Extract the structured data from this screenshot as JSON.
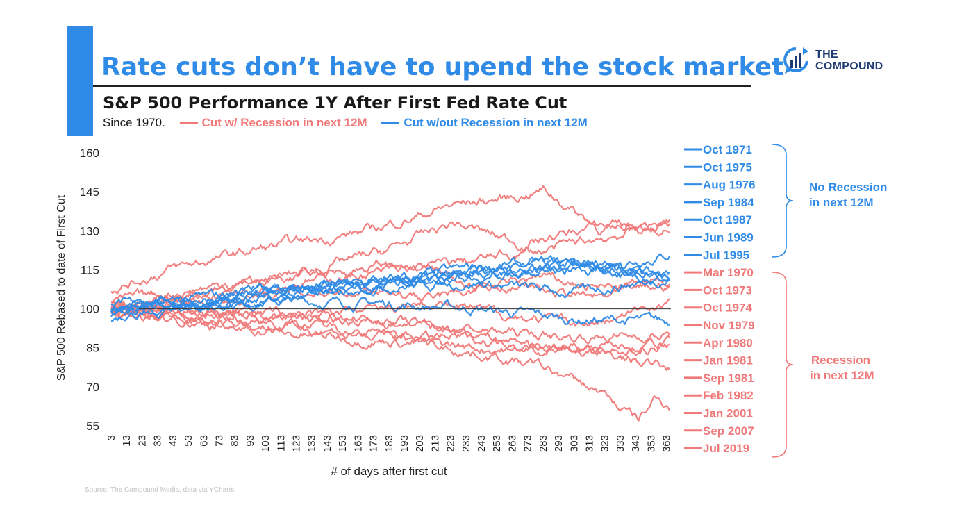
{
  "header": {
    "headline": "Rate cuts don’t have to upend the stock market",
    "subtitle": "S&P 500 Performance 1Y After First Fed Rate Cut",
    "since": "Since 1970."
  },
  "legend": {
    "recession_label": "Cut w/ Recession in next 12M",
    "no_recession_label": "Cut w/out Recession in next 12M"
  },
  "logo": {
    "line1": "THE",
    "line2": "COMPOUND"
  },
  "source": "Source: The Compound Media, data via YCharts",
  "colors": {
    "accent": "#2f8be6",
    "recession": "#f07a7a",
    "no_recession": "#2f8be6",
    "baseline": "#333333"
  },
  "groups": [
    {
      "label": "No Recession",
      "label2": "in next 12M",
      "color": "#2f8be6"
    },
    {
      "label": "Recession",
      "label2": "in next 12M",
      "color": "#f07a7a"
    }
  ],
  "chart_data": {
    "type": "line",
    "title": "S&P 500 Performance 1Y After First Fed Rate Cut",
    "xlabel": "# of days after first cut",
    "ylabel": "S&P 500 Rebased to date of First Cut",
    "xlim": [
      3,
      365
    ],
    "ylim": [
      55,
      160
    ],
    "yticks": [
      160,
      145,
      130,
      115,
      100,
      85,
      70,
      55
    ],
    "xticks": [
      3,
      13,
      23,
      33,
      43,
      53,
      63,
      73,
      83,
      93,
      103,
      113,
      123,
      133,
      143,
      153,
      163,
      173,
      183,
      193,
      203,
      213,
      223,
      233,
      243,
      253,
      263,
      273,
      283,
      293,
      303,
      313,
      323,
      333,
      343,
      353,
      363
    ],
    "baseline": 100,
    "grid": false,
    "series": [
      {
        "name": "Oct 1971",
        "group": "no_recession",
        "points": [
          [
            3,
            100
          ],
          [
            60,
            101
          ],
          [
            120,
            106
          ],
          [
            180,
            110
          ],
          [
            240,
            114
          ],
          [
            300,
            117
          ],
          [
            365,
            113
          ]
        ]
      },
      {
        "name": "Oct 1975",
        "group": "no_recession",
        "points": [
          [
            3,
            97
          ],
          [
            60,
            103
          ],
          [
            120,
            107
          ],
          [
            180,
            109
          ],
          [
            240,
            112
          ],
          [
            300,
            117
          ],
          [
            365,
            111
          ]
        ]
      },
      {
        "name": "Aug 1976",
        "group": "no_recession",
        "points": [
          [
            3,
            101
          ],
          [
            60,
            102
          ],
          [
            120,
            103
          ],
          [
            180,
            102
          ],
          [
            240,
            100
          ],
          [
            300,
            96
          ],
          [
            365,
            95
          ]
        ]
      },
      {
        "name": "Sep 1984",
        "group": "no_recession",
        "points": [
          [
            3,
            100
          ],
          [
            60,
            102
          ],
          [
            120,
            106
          ],
          [
            180,
            110
          ],
          [
            240,
            114
          ],
          [
            300,
            115
          ],
          [
            365,
            121
          ]
        ]
      },
      {
        "name": "Oct 1987",
        "group": "no_recession",
        "points": [
          [
            3,
            96
          ],
          [
            60,
            104
          ],
          [
            120,
            108
          ],
          [
            180,
            110
          ],
          [
            240,
            116
          ],
          [
            300,
            118
          ],
          [
            365,
            113
          ]
        ]
      },
      {
        "name": "Jun 1989",
        "group": "no_recession",
        "points": [
          [
            3,
            99
          ],
          [
            60,
            104
          ],
          [
            120,
            108
          ],
          [
            180,
            109
          ],
          [
            240,
            110
          ],
          [
            300,
            106
          ],
          [
            365,
            112
          ]
        ]
      },
      {
        "name": "Jul 1995",
        "group": "no_recession",
        "points": [
          [
            3,
            100
          ],
          [
            60,
            101
          ],
          [
            120,
            104
          ],
          [
            180,
            108
          ],
          [
            240,
            114
          ],
          [
            300,
            116
          ],
          [
            365,
            114
          ]
        ]
      },
      {
        "name": "Mar 1970",
        "group": "recession",
        "points": [
          [
            3,
            107
          ],
          [
            40,
            115
          ],
          [
            100,
            123
          ],
          [
            170,
            130
          ],
          [
            225,
            140
          ],
          [
            265,
            143
          ],
          [
            283,
            146
          ],
          [
            320,
            131
          ],
          [
            365,
            133
          ]
        ]
      },
      {
        "name": "Oct 1973",
        "group": "recession",
        "points": [
          [
            3,
            100
          ],
          [
            60,
            95
          ],
          [
            120,
            90
          ],
          [
            180,
            88
          ],
          [
            240,
            85
          ],
          [
            300,
            84
          ],
          [
            365,
            87
          ]
        ]
      },
      {
        "name": "Oct 1974",
        "group": "recession",
        "points": [
          [
            3,
            98
          ],
          [
            60,
            106
          ],
          [
            120,
            113
          ],
          [
            180,
            122
          ],
          [
            225,
            133
          ],
          [
            270,
            125
          ],
          [
            320,
            132
          ],
          [
            365,
            131
          ]
        ]
      },
      {
        "name": "Nov 1979",
        "group": "recession",
        "points": [
          [
            3,
            102
          ],
          [
            60,
            108
          ],
          [
            120,
            112
          ],
          [
            180,
            117
          ],
          [
            230,
            112
          ],
          [
            270,
            108
          ],
          [
            320,
            104
          ],
          [
            365,
            109
          ]
        ]
      },
      {
        "name": "Apr 1980",
        "group": "recession",
        "points": [
          [
            3,
            100
          ],
          [
            60,
            105
          ],
          [
            120,
            110
          ],
          [
            180,
            114
          ],
          [
            230,
            118
          ],
          [
            280,
            122
          ],
          [
            320,
            127
          ],
          [
            365,
            133
          ]
        ]
      },
      {
        "name": "Jan 1981",
        "group": "recession",
        "points": [
          [
            3,
            101
          ],
          [
            60,
            98
          ],
          [
            120,
            97
          ],
          [
            180,
            95
          ],
          [
            240,
            92
          ],
          [
            300,
            89
          ],
          [
            365,
            90
          ]
        ]
      },
      {
        "name": "Sep 1981",
        "group": "recession",
        "points": [
          [
            3,
            98
          ],
          [
            60,
            95
          ],
          [
            120,
            93
          ],
          [
            180,
            90
          ],
          [
            240,
            88
          ],
          [
            300,
            85
          ],
          [
            365,
            85
          ]
        ]
      },
      {
        "name": "Feb 1982",
        "group": "recession",
        "points": [
          [
            3,
            100
          ],
          [
            60,
            98
          ],
          [
            120,
            96
          ],
          [
            180,
            99
          ],
          [
            230,
            106
          ],
          [
            280,
            112
          ],
          [
            320,
            108
          ],
          [
            365,
            110
          ]
        ]
      },
      {
        "name": "Jan 2001",
        "group": "recession",
        "points": [
          [
            3,
            99
          ],
          [
            60,
            96
          ],
          [
            120,
            95
          ],
          [
            180,
            90
          ],
          [
            230,
            84
          ],
          [
            280,
            78
          ],
          [
            320,
            68
          ],
          [
            345,
            57
          ],
          [
            355,
            65
          ],
          [
            365,
            63
          ]
        ]
      },
      {
        "name": "Sep 2007",
        "group": "recession",
        "points": [
          [
            3,
            102
          ],
          [
            60,
            99
          ],
          [
            120,
            98
          ],
          [
            180,
            95
          ],
          [
            230,
            92
          ],
          [
            280,
            86
          ],
          [
            320,
            83
          ],
          [
            365,
            77
          ]
        ]
      },
      {
        "name": "Jul 2019",
        "group": "recession",
        "points": [
          [
            3,
            100
          ],
          [
            60,
            103
          ],
          [
            120,
            106
          ],
          [
            180,
            108
          ],
          [
            230,
            100
          ],
          [
            280,
            96
          ],
          [
            320,
            94
          ],
          [
            365,
            103
          ]
        ]
      }
    ]
  }
}
